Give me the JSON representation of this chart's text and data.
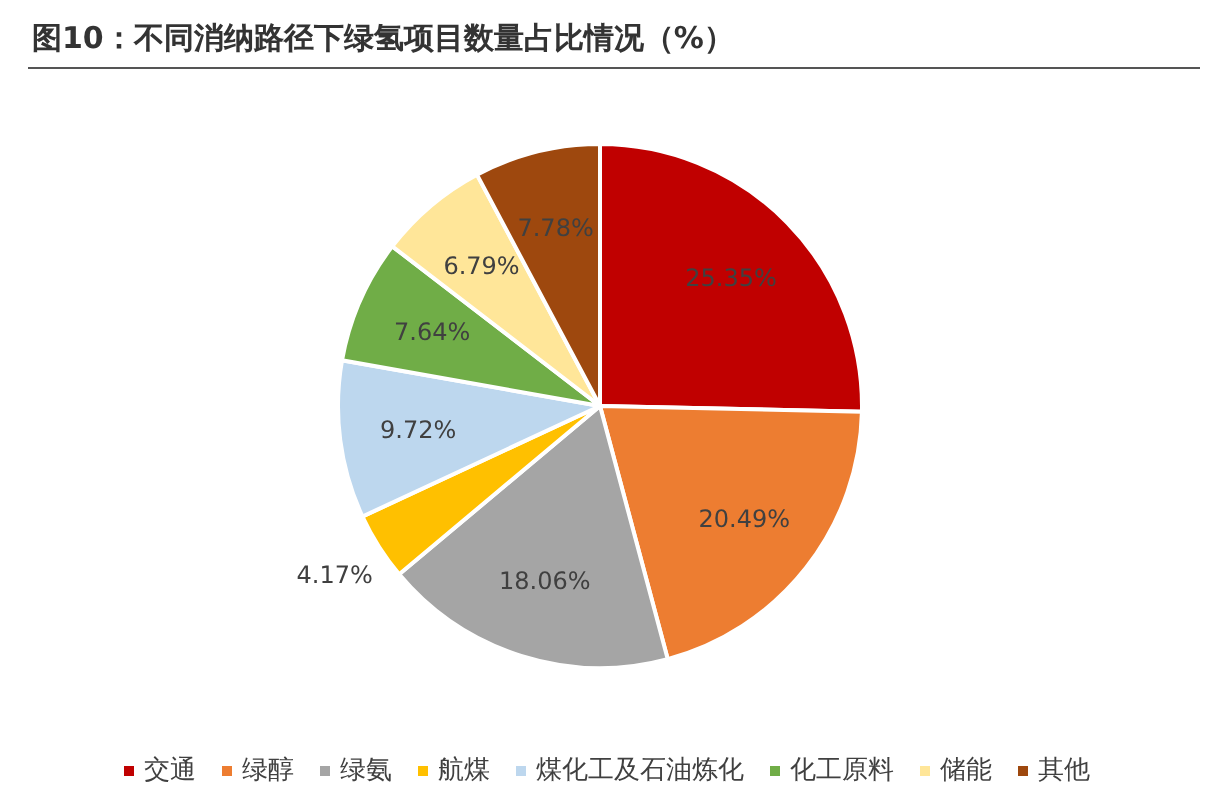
{
  "chart_data": {
    "type": "pie",
    "title": "图10：不同消纳路径下绿氢项目数量占比情况（%）",
    "categories": [
      "交通",
      "绿醇",
      "绿氨",
      "航煤",
      "煤化工及石油炼化",
      "化工原料",
      "储能",
      "其他"
    ],
    "values": [
      25.35,
      20.49,
      18.06,
      4.17,
      9.72,
      7.64,
      6.79,
      7.78
    ],
    "colors": [
      "#c00000",
      "#ed7d31",
      "#a5a5a5",
      "#ffc000",
      "#bdd7ee",
      "#70ad47",
      "#ffe699",
      "#9e480e"
    ],
    "value_labels": [
      "25.35%",
      "20.49%",
      "18.06%",
      "4.17%",
      "9.72%",
      "7.64%",
      "6.79%",
      "7.78%"
    ],
    "legend": "bottom"
  }
}
